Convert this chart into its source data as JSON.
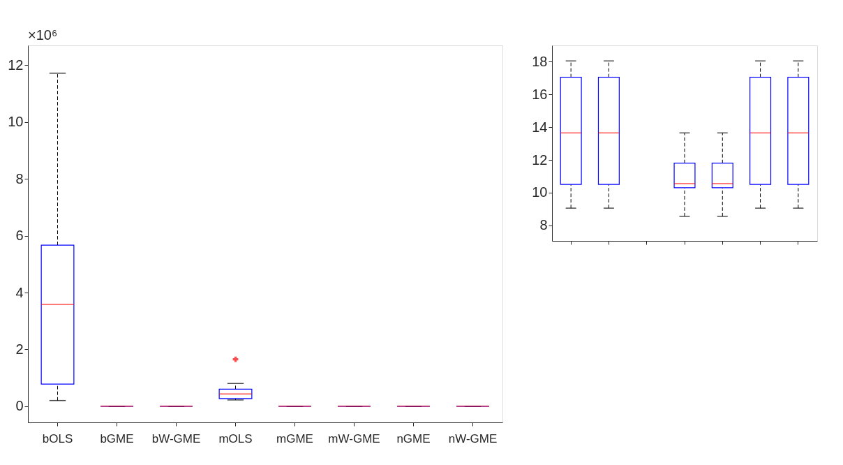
{
  "chart_data": [
    {
      "type": "box",
      "categories": [
        "bOLS",
        "bGME",
        "bW-GME",
        "mOLS",
        "mGME",
        "mW-GME",
        "nGME",
        "nW-GME"
      ],
      "boxes": [
        {
          "low": 0.2,
          "q1": 0.78,
          "median": 3.58,
          "q3": 5.67,
          "high": 11.72
        },
        {
          "low": 0,
          "q1": 0,
          "median": 0,
          "q3": 0,
          "high": 0
        },
        {
          "low": 0,
          "q1": 0,
          "median": 0,
          "q3": 0,
          "high": 0
        },
        {
          "low": 0.22,
          "q1": 0.27,
          "median": 0.43,
          "q3": 0.6,
          "high": 0.8,
          "outliers": [
            1.65
          ]
        },
        {
          "low": 0,
          "q1": 0,
          "median": 0,
          "q3": 0,
          "high": 0
        },
        {
          "low": 0,
          "q1": 0,
          "median": 0,
          "q3": 0,
          "high": 0
        },
        {
          "low": 0,
          "q1": 0,
          "median": 0,
          "q3": 0,
          "high": 0
        },
        {
          "low": 0,
          "q1": 0,
          "median": 0,
          "q3": 0,
          "high": 0
        }
      ],
      "ylim": [
        -0.57,
        12.7
      ],
      "yticks": [
        0,
        2,
        4,
        6,
        8,
        10,
        12
      ],
      "annotations": [
        "×10⁶"
      ],
      "grid": false
    },
    {
      "type": "box",
      "categories": [
        null,
        null,
        null,
        null,
        null,
        null,
        null
      ],
      "boxes": [
        {
          "low": 9.05,
          "q1": 10.5,
          "median": 13.65,
          "q3": 17.05,
          "high": 18.05
        },
        {
          "low": 9.05,
          "q1": 10.5,
          "median": 13.65,
          "q3": 17.05,
          "high": 18.05
        },
        null,
        {
          "low": 8.55,
          "q1": 10.3,
          "median": 10.55,
          "q3": 11.8,
          "high": 13.65
        },
        {
          "low": 8.55,
          "q1": 10.3,
          "median": 10.55,
          "q3": 11.8,
          "high": 13.65
        },
        {
          "low": 9.05,
          "q1": 10.5,
          "median": 13.65,
          "q3": 17.05,
          "high": 18.05
        },
        {
          "low": 9.05,
          "q1": 10.5,
          "median": 13.65,
          "q3": 17.05,
          "high": 18.05
        }
      ],
      "ylim": [
        7.05,
        19
      ],
      "yticks": [
        8,
        10,
        12,
        14,
        16,
        18
      ],
      "tick_labels": "y",
      "grid": false
    }
  ]
}
